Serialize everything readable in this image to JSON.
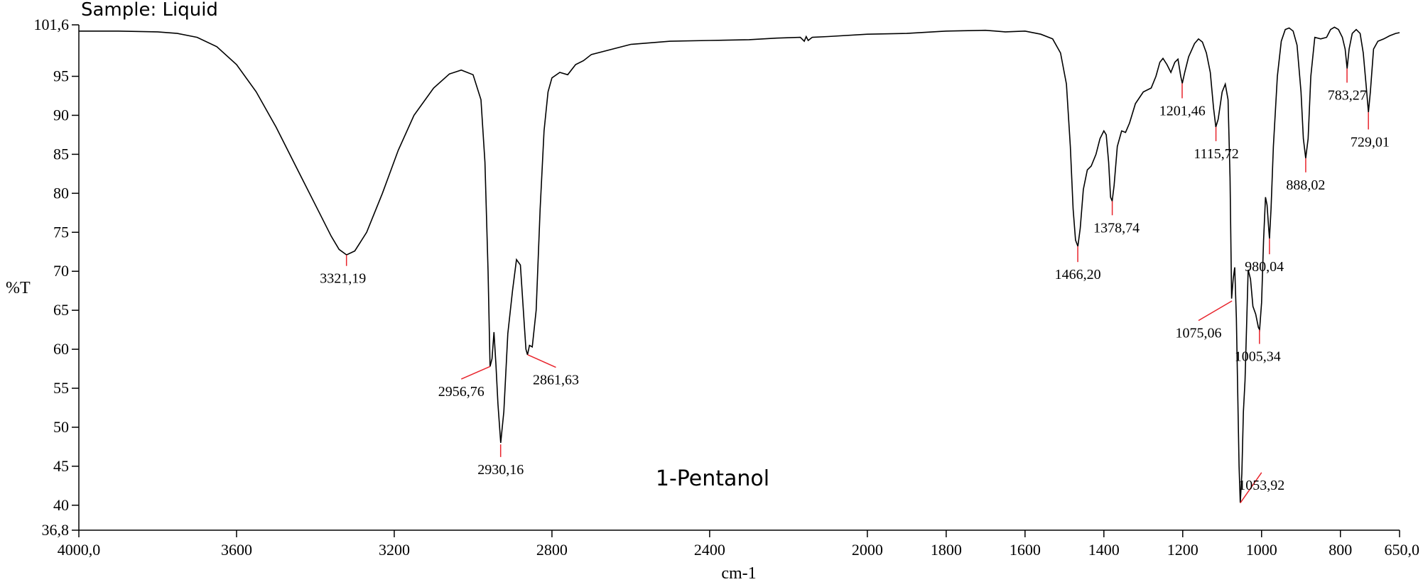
{
  "chart_data": {
    "type": "line",
    "sample_label": "Sample: Liquid",
    "compound": "1-Pentanol",
    "xlabel": "cm-1",
    "ylabel": "%T",
    "xlim": [
      4000,
      650
    ],
    "ylim": [
      36.8,
      101.6
    ],
    "x_reversed": true,
    "grid": false,
    "x_ticks": [
      {
        "value": 4000,
        "label": "4000,0"
      },
      {
        "value": 3600,
        "label": "3600"
      },
      {
        "value": 3200,
        "label": "3200"
      },
      {
        "value": 2800,
        "label": "2800"
      },
      {
        "value": 2400,
        "label": "2400"
      },
      {
        "value": 2000,
        "label": "2000"
      },
      {
        "value": 1800,
        "label": "1800"
      },
      {
        "value": 1600,
        "label": "1600"
      },
      {
        "value": 1400,
        "label": "1400"
      },
      {
        "value": 1200,
        "label": "1200"
      },
      {
        "value": 1000,
        "label": "1000"
      },
      {
        "value": 800,
        "label": "800"
      },
      {
        "value": 650,
        "label": "650,0"
      }
    ],
    "y_ticks": [
      {
        "value": 101.6,
        "label": "101,6"
      },
      {
        "value": 95,
        "label": "95"
      },
      {
        "value": 90,
        "label": "90"
      },
      {
        "value": 85,
        "label": "85"
      },
      {
        "value": 80,
        "label": "80"
      },
      {
        "value": 75,
        "label": "75"
      },
      {
        "value": 70,
        "label": "70"
      },
      {
        "value": 65,
        "label": "65"
      },
      {
        "value": 60,
        "label": "60"
      },
      {
        "value": 55,
        "label": "55"
      },
      {
        "value": 50,
        "label": "50"
      },
      {
        "value": 45,
        "label": "45"
      },
      {
        "value": 40,
        "label": "40"
      },
      {
        "value": 36.8,
        "label": "36,8"
      }
    ],
    "line_color": "#000000",
    "marker_color": "#e8242c",
    "spectrum": [
      [
        4000,
        100.8
      ],
      [
        3900,
        100.8
      ],
      [
        3800,
        100.7
      ],
      [
        3750,
        100.5
      ],
      [
        3700,
        100.0
      ],
      [
        3650,
        98.8
      ],
      [
        3600,
        96.5
      ],
      [
        3550,
        93.0
      ],
      [
        3500,
        88.5
      ],
      [
        3450,
        83.5
      ],
      [
        3400,
        78.5
      ],
      [
        3360,
        74.5
      ],
      [
        3340,
        72.8
      ],
      [
        3321,
        72.1
      ],
      [
        3300,
        72.6
      ],
      [
        3270,
        75.0
      ],
      [
        3230,
        80.0
      ],
      [
        3190,
        85.5
      ],
      [
        3150,
        90.0
      ],
      [
        3100,
        93.5
      ],
      [
        3060,
        95.3
      ],
      [
        3030,
        95.8
      ],
      [
        3000,
        95.2
      ],
      [
        2980,
        92.0
      ],
      [
        2970,
        84.0
      ],
      [
        2962,
        70.0
      ],
      [
        2957,
        57.8
      ],
      [
        2952,
        58.8
      ],
      [
        2947,
        62.2
      ],
      [
        2942,
        58.0
      ],
      [
        2937,
        53.0
      ],
      [
        2930,
        48.0
      ],
      [
        2922,
        52.0
      ],
      [
        2912,
        62.0
      ],
      [
        2900,
        67.5
      ],
      [
        2890,
        71.5
      ],
      [
        2880,
        70.8
      ],
      [
        2870,
        63.0
      ],
      [
        2866,
        60.0
      ],
      [
        2862,
        59.3
      ],
      [
        2857,
        60.5
      ],
      [
        2850,
        60.3
      ],
      [
        2840,
        65.0
      ],
      [
        2830,
        78.0
      ],
      [
        2820,
        88.0
      ],
      [
        2810,
        93.0
      ],
      [
        2800,
        94.8
      ],
      [
        2780,
        95.5
      ],
      [
        2760,
        95.2
      ],
      [
        2740,
        96.5
      ],
      [
        2720,
        97.0
      ],
      [
        2700,
        97.8
      ],
      [
        2600,
        99.1
      ],
      [
        2500,
        99.5
      ],
      [
        2400,
        99.6
      ],
      [
        2300,
        99.7
      ],
      [
        2230,
        99.9
      ],
      [
        2170,
        100.0
      ],
      [
        2160,
        99.5
      ],
      [
        2155,
        100.1
      ],
      [
        2150,
        99.6
      ],
      [
        2140,
        100.0
      ],
      [
        2100,
        100.1
      ],
      [
        2000,
        100.4
      ],
      [
        1900,
        100.5
      ],
      [
        1800,
        100.8
      ],
      [
        1700,
        100.9
      ],
      [
        1650,
        100.7
      ],
      [
        1600,
        100.8
      ],
      [
        1560,
        100.4
      ],
      [
        1530,
        99.8
      ],
      [
        1510,
        98.0
      ],
      [
        1495,
        94.0
      ],
      [
        1485,
        86.0
      ],
      [
        1478,
        78.0
      ],
      [
        1472,
        74.0
      ],
      [
        1466,
        73.2
      ],
      [
        1460,
        75.5
      ],
      [
        1452,
        80.5
      ],
      [
        1442,
        83.0
      ],
      [
        1432,
        83.5
      ],
      [
        1420,
        85.0
      ],
      [
        1410,
        87.0
      ],
      [
        1400,
        88.0
      ],
      [
        1394,
        87.5
      ],
      [
        1388,
        84.0
      ],
      [
        1383,
        79.5
      ],
      [
        1379,
        79.0
      ],
      [
        1374,
        81.0
      ],
      [
        1366,
        86.0
      ],
      [
        1355,
        88.0
      ],
      [
        1345,
        87.8
      ],
      [
        1335,
        89.0
      ],
      [
        1320,
        91.5
      ],
      [
        1300,
        93.0
      ],
      [
        1280,
        93.5
      ],
      [
        1268,
        95.0
      ],
      [
        1258,
        96.8
      ],
      [
        1250,
        97.3
      ],
      [
        1240,
        96.5
      ],
      [
        1230,
        95.5
      ],
      [
        1220,
        96.8
      ],
      [
        1212,
        97.2
      ],
      [
        1205,
        95.0
      ],
      [
        1201,
        94.1
      ],
      [
        1195,
        95.5
      ],
      [
        1185,
        97.5
      ],
      [
        1170,
        99.2
      ],
      [
        1160,
        99.8
      ],
      [
        1150,
        99.4
      ],
      [
        1140,
        98.0
      ],
      [
        1130,
        95.5
      ],
      [
        1122,
        91.0
      ],
      [
        1116,
        88.5
      ],
      [
        1110,
        89.5
      ],
      [
        1100,
        93.0
      ],
      [
        1092,
        94.0
      ],
      [
        1085,
        92.0
      ],
      [
        1080,
        82.0
      ],
      [
        1076,
        66.5
      ],
      [
        1072,
        69.0
      ],
      [
        1068,
        70.5
      ],
      [
        1064,
        64.0
      ],
      [
        1060,
        53.0
      ],
      [
        1057,
        45.0
      ],
      [
        1054,
        40.3
      ],
      [
        1050,
        44.0
      ],
      [
        1046,
        52.0
      ],
      [
        1042,
        56.0
      ],
      [
        1038,
        63.0
      ],
      [
        1034,
        70.2
      ],
      [
        1028,
        69.0
      ],
      [
        1022,
        65.5
      ],
      [
        1015,
        64.5
      ],
      [
        1008,
        62.8
      ],
      [
        1005,
        62.5
      ],
      [
        1000,
        66.0
      ],
      [
        995,
        74.0
      ],
      [
        990,
        79.5
      ],
      [
        986,
        78.5
      ],
      [
        982,
        75.5
      ],
      [
        980,
        74.2
      ],
      [
        976,
        78.0
      ],
      [
        970,
        86.0
      ],
      [
        960,
        95.0
      ],
      [
        950,
        99.5
      ],
      [
        940,
        101.0
      ],
      [
        930,
        101.2
      ],
      [
        920,
        100.8
      ],
      [
        910,
        99.0
      ],
      [
        900,
        93.0
      ],
      [
        894,
        87.0
      ],
      [
        888,
        84.5
      ],
      [
        882,
        87.0
      ],
      [
        875,
        95.0
      ],
      [
        865,
        100.0
      ],
      [
        850,
        99.8
      ],
      [
        835,
        100.0
      ],
      [
        825,
        101.0
      ],
      [
        815,
        101.3
      ],
      [
        805,
        101.0
      ],
      [
        795,
        100.0
      ],
      [
        788,
        98.5
      ],
      [
        783,
        96.0
      ],
      [
        778,
        98.5
      ],
      [
        770,
        100.5
      ],
      [
        760,
        101.0
      ],
      [
        750,
        100.5
      ],
      [
        742,
        98.0
      ],
      [
        735,
        94.0
      ],
      [
        729,
        90.4
      ],
      [
        724,
        93.0
      ],
      [
        716,
        98.5
      ],
      [
        705,
        99.5
      ],
      [
        690,
        99.8
      ],
      [
        675,
        100.2
      ],
      [
        660,
        100.5
      ],
      [
        650,
        100.6
      ]
    ],
    "peaks": [
      {
        "label": "3321,19",
        "x": 3321.19,
        "y": 72.1,
        "label_x": 3330,
        "label_y": 68.5,
        "anchor": "middle"
      },
      {
        "label": "2956,76",
        "x": 2956.76,
        "y": 57.8,
        "label_x": 3030,
        "label_y": 54.0,
        "anchor": "middle"
      },
      {
        "label": "2930,16",
        "x": 2930.16,
        "y": 47.8,
        "label_x": 2930,
        "label_y": 44.0,
        "anchor": "middle"
      },
      {
        "label": "2861,63",
        "x": 2861.63,
        "y": 59.3,
        "label_x": 2790,
        "label_y": 55.5,
        "anchor": "middle"
      },
      {
        "label": "1466,20",
        "x": 1466.2,
        "y": 73.2,
        "label_x": 1466,
        "label_y": 69.0,
        "anchor": "middle"
      },
      {
        "label": "1378,74",
        "x": 1378.74,
        "y": 79.0,
        "label_x": 1368,
        "label_y": 75.0,
        "anchor": "middle"
      },
      {
        "label": "1201,46",
        "x": 1201.46,
        "y": 94.1,
        "label_x": 1201,
        "label_y": 90.0,
        "anchor": "middle"
      },
      {
        "label": "1115,72",
        "x": 1115.72,
        "y": 88.5,
        "label_x": 1115,
        "label_y": 84.5,
        "anchor": "middle"
      },
      {
        "label": "1075,06",
        "x": 1075.06,
        "y": 66.2,
        "label_x": 1160,
        "label_y": 61.5,
        "anchor": "middle"
      },
      {
        "label": "1053,92",
        "x": 1053.92,
        "y": 40.3,
        "label_x": 1000,
        "label_y": 42.0,
        "anchor": "middle"
      },
      {
        "label": "1005,34",
        "x": 1005.34,
        "y": 62.5,
        "label_x": 1010,
        "label_y": 58.5,
        "anchor": "middle"
      },
      {
        "label": "980,04",
        "x": 980.04,
        "y": 74.2,
        "label_x": 993,
        "label_y": 70.0,
        "anchor": "middle"
      },
      {
        "label": "888,02",
        "x": 888.02,
        "y": 84.5,
        "label_x": 888,
        "label_y": 80.5,
        "anchor": "middle"
      },
      {
        "label": "783,27",
        "x": 783.27,
        "y": 96.0,
        "label_x": 783,
        "label_y": 92.0,
        "anchor": "middle"
      },
      {
        "label": "729,01",
        "x": 729.01,
        "y": 90.4,
        "label_x": 725,
        "label_y": 86.0,
        "anchor": "middle"
      }
    ]
  }
}
